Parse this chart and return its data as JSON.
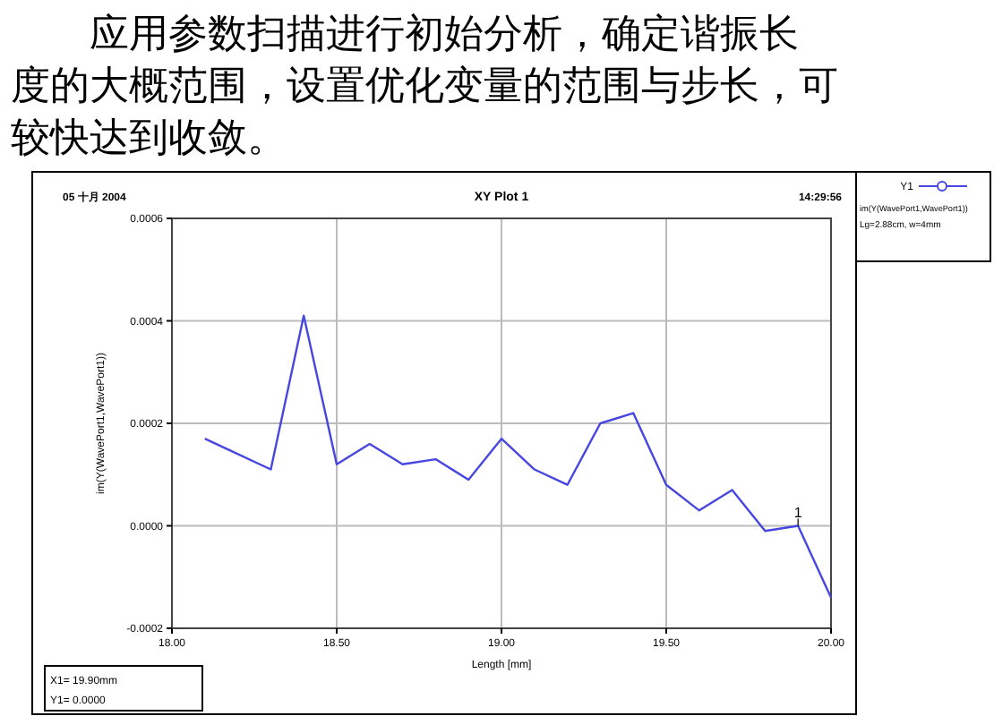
{
  "chart_data": {
    "type": "line",
    "title": "应用参数扫描进行初始分析，确定谐振长度的大概范围，设置优化变量的范围与步长，可较快达到收敛。",
    "subtitle": "XY Plot 1",
    "xlabel": "Length [mm]",
    "ylabel": "im(Y(WavePort1,WavePort1))",
    "legend": "right",
    "grid": true,
    "marker": "none",
    "line_style": "solid",
    "x": [
      18.1,
      18.3,
      18.4,
      18.5,
      18.6,
      18.7,
      18.8,
      18.9,
      19.0,
      19.1,
      19.2,
      19.3,
      19.4,
      19.5,
      19.6,
      19.7,
      19.8,
      19.9,
      20.0
    ],
    "series": [
      {
        "name": "Y1",
        "color": "#4646e0",
        "values": [
          0.00017,
          0.00011,
          0.00041,
          0.00012,
          0.00016,
          0.00012,
          0.00013,
          9e-05,
          0.00017,
          0.00011,
          8e-05,
          0.0002,
          0.00022,
          8e-05,
          3e-05,
          7e-05,
          -1e-05,
          0.0,
          -0.00014
        ]
      }
    ],
    "xlim": [
      18.0,
      20.0
    ],
    "xticks": [
      {
        "value": 18,
        "label": "18.00"
      },
      {
        "value": 18.5,
        "label": "18.50"
      },
      {
        "value": 19,
        "label": "19.00"
      },
      {
        "value": 19.5,
        "label": "19.50"
      },
      {
        "value": 20,
        "label": "20.00"
      }
    ],
    "ylim": [
      -0.0002,
      0.0006
    ],
    "yticks": [
      {
        "value": -0.0002,
        "label": "-0.0002"
      },
      {
        "value": 0,
        "label": "0.0000"
      },
      {
        "value": 0.0002,
        "label": "0.0002"
      },
      {
        "value": 0.0004,
        "label": "0.0004"
      },
      {
        "value": 0.0006,
        "label": "0.0006"
      }
    ],
    "annotations": [
      "05 十月 2004",
      "14:29:56",
      "im(Y(WavePort1,WavePort1))",
      "Lg=2.88cm, w=4mm",
      "X1= 19.90mm",
      "Y1= 0.0000",
      {
        "text": "1",
        "x": 19.9,
        "y": 0.0
      }
    ]
  }
}
